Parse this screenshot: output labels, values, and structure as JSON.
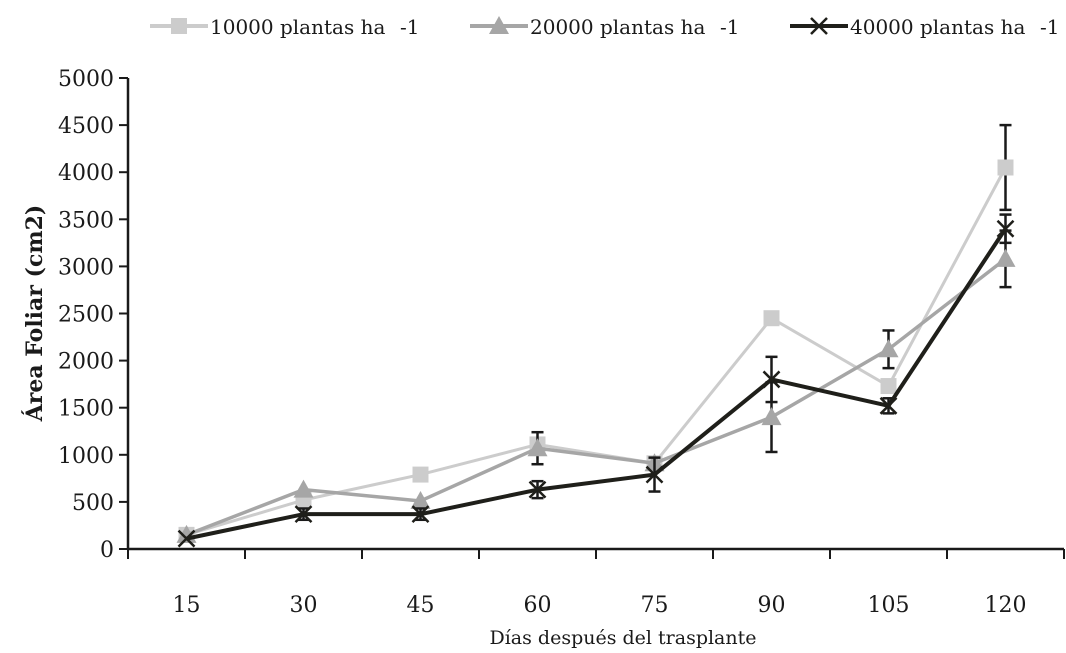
{
  "chart_data": {
    "type": "line",
    "title": "",
    "xlabel": "Días después del trasplante",
    "ylabel": "Área Foliar (cm2)",
    "categories": [
      "15",
      "30",
      "45",
      "60",
      "75",
      "90",
      "105",
      "120"
    ],
    "ylim": [
      0,
      5000
    ],
    "yticks": [
      0,
      500,
      1000,
      1500,
      2000,
      2500,
      3000,
      3500,
      4000,
      4500,
      5000
    ],
    "grid": false,
    "legend_position": "top",
    "series": [
      {
        "name": "10000 plantas ha",
        "name_sup": "-1",
        "color": "#cccccc",
        "marker": "square",
        "values": [
          150,
          520,
          790,
          1110,
          910,
          2450,
          1730,
          4050
        ],
        "errors": [
          0,
          0,
          0,
          0,
          0,
          0,
          0,
          450
        ]
      },
      {
        "name": "20000 plantas ha",
        "name_sup": "-1",
        "color": "#a6a6a6",
        "marker": "triangle",
        "values": [
          150,
          630,
          510,
          1070,
          910,
          1400,
          2120,
          3080
        ],
        "errors": [
          0,
          0,
          0,
          170,
          0,
          370,
          200,
          300
        ]
      },
      {
        "name": "40000 plantas ha",
        "name_sup": "-1",
        "color": "#1f1f1a",
        "marker": "x",
        "values": [
          110,
          370,
          370,
          630,
          790,
          1800,
          1520,
          3400
        ],
        "errors": [
          0,
          60,
          60,
          90,
          180,
          240,
          80,
          150
        ]
      }
    ]
  }
}
